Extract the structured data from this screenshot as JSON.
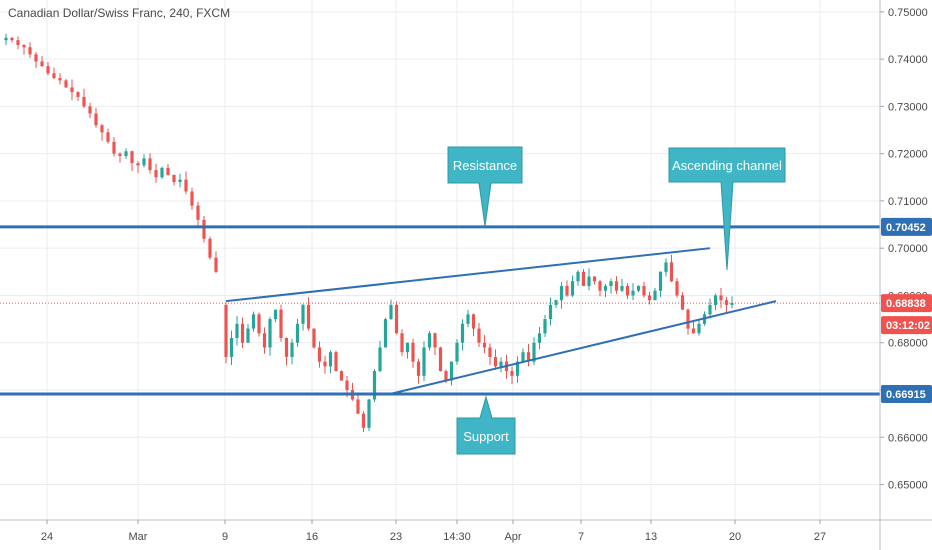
{
  "chart_data": {
    "type": "candlestick",
    "title": "Canadian Dollar/Swiss Franc, 240, FXCM",
    "ylim": [
      0.6425,
      0.7525
    ],
    "y_ticks": [
      "0.75000",
      "0.74000",
      "0.73000",
      "0.72000",
      "0.71000",
      "0.70000",
      "0.69000",
      "0.68000",
      "0.67000",
      "0.66000",
      "0.65000"
    ],
    "x_labels": [
      "24",
      "Mar",
      "9",
      "16",
      "23",
      "14:30",
      "Apr",
      "7",
      "13",
      "20",
      "27"
    ],
    "grid": true,
    "price_tags": [
      {
        "label": "0.70452",
        "value": 0.70452,
        "color": "#2f6fb3"
      },
      {
        "label": "0.68838",
        "value": 0.68838,
        "color": "#ef5350"
      },
      {
        "label": "03:12:02",
        "value": 0.685,
        "color": "#ef5350"
      },
      {
        "label": "0.66915",
        "value": 0.66915,
        "color": "#2f6fb3"
      }
    ],
    "horizontal_lines": [
      {
        "name": "resistance",
        "value": 0.70452,
        "color": "#2f6fb3"
      },
      {
        "name": "support",
        "value": 0.66915,
        "color": "#2f6fb3"
      }
    ],
    "current_price": 0.68838,
    "trend_lines": [
      {
        "name": "channel-upper",
        "from": {
          "bar": 0,
          "price": 0.6888
        },
        "to": {
          "bar": 88,
          "price": 0.7
        },
        "color": "#2f6fb3"
      },
      {
        "name": "channel-lower",
        "from": {
          "bar": 30,
          "price": 0.6692
        },
        "to": {
          "bar": 100,
          "price": 0.6888
        },
        "color": "#2f6fb3"
      }
    ],
    "callouts": [
      {
        "text": "Resistance",
        "anchor": 0.70452
      },
      {
        "text": "Ascending channel",
        "anchor": 0.697
      },
      {
        "text": "Support",
        "anchor": 0.66915
      }
    ],
    "colors": {
      "up": "#26a69a",
      "down": "#ef5350",
      "annotation": "#2f6fb3",
      "callout": "#3fb5c5"
    },
    "down_phase": {
      "start": 0.744,
      "closes": [
        0.7445,
        0.744,
        0.743,
        0.7425,
        0.741,
        0.7395,
        0.7385,
        0.737,
        0.736,
        0.7355,
        0.734,
        0.733,
        0.732,
        0.73,
        0.7285,
        0.726,
        0.7245,
        0.7225,
        0.72,
        0.7195,
        0.7205,
        0.718,
        0.7175,
        0.719,
        0.7165,
        0.715,
        0.717,
        0.7155,
        0.714,
        0.7145,
        0.712,
        0.709,
        0.706,
        0.702,
        0.698,
        0.695
      ]
    },
    "main_phase": {
      "start": 0.688,
      "closes": [
        0.677,
        0.681,
        0.684,
        0.68,
        0.683,
        0.686,
        0.682,
        0.679,
        0.685,
        0.687,
        0.681,
        0.677,
        0.68,
        0.684,
        0.688,
        0.683,
        0.679,
        0.676,
        0.675,
        0.678,
        0.674,
        0.672,
        0.67,
        0.668,
        0.665,
        0.662,
        0.668,
        0.674,
        0.679,
        0.685,
        0.688,
        0.682,
        0.678,
        0.68,
        0.676,
        0.673,
        0.679,
        0.682,
        0.679,
        0.674,
        0.672,
        0.676,
        0.68,
        0.684,
        0.686,
        0.683,
        0.68,
        0.679,
        0.677,
        0.675,
        0.676,
        0.674,
        0.673,
        0.676,
        0.678,
        0.676,
        0.68,
        0.682,
        0.685,
        0.688,
        0.689,
        0.692,
        0.69,
        0.693,
        0.695,
        0.692,
        0.694,
        0.693,
        0.691,
        0.692,
        0.693,
        0.691,
        0.692,
        0.69,
        0.691,
        0.692,
        0.69,
        0.689,
        0.691,
        0.695,
        0.697,
        0.693,
        0.69,
        0.687,
        0.683,
        0.682,
        0.684,
        0.686,
        0.688,
        0.69,
        0.689,
        0.688,
        0.6884
      ]
    }
  }
}
